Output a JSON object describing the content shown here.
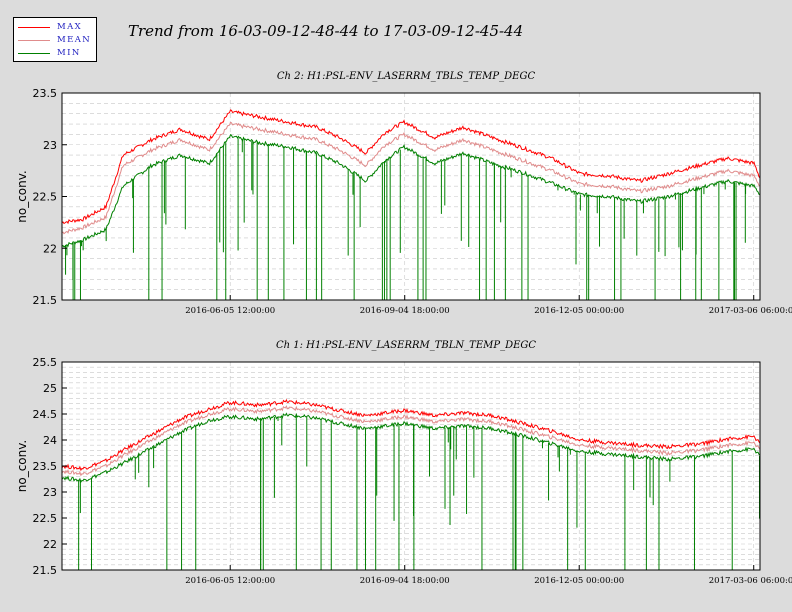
{
  "header": {
    "title": "Trend from 16-03-09-12-48-44 to 17-03-09-12-45-44"
  },
  "legend": [
    {
      "label": "MAX",
      "color": "#ff0000"
    },
    {
      "label": "MEAN",
      "color": "#e08c8c"
    },
    {
      "label": "MIN",
      "color": "#008000"
    }
  ],
  "chart_data": [
    {
      "type": "line",
      "title": "Ch 2: H1:PSL-ENV_LASERRM_TBLS_TEMP_DEGC",
      "ylabel": "no_conv.",
      "ylim": [
        21.5,
        23.5
      ],
      "yticks": [
        21.5,
        22,
        22.5,
        23,
        23.5
      ],
      "ytick_labels": [
        "21.5",
        "22",
        "22.5",
        "23",
        "23.5"
      ],
      "x_range": [
        "2016-03-09 12:48:44",
        "2017-03-09 12:45:44"
      ],
      "xticks": [
        "2016-06-05 12:00:00",
        "2016-09-04 18:00:00",
        "2016-12-05 00:00:00",
        "2017-03-06 06:00:00"
      ],
      "grid": true,
      "series": [
        {
          "name": "MAX",
          "color": "#ff0000"
        },
        {
          "name": "MEAN",
          "color": "#e08c8c"
        },
        {
          "name": "MIN",
          "color": "#008000"
        }
      ],
      "x": [
        "2016-03-09",
        "2016-03-20",
        "2016-04-01",
        "2016-04-10",
        "2016-04-25",
        "2016-05-10",
        "2016-05-25",
        "2016-06-05",
        "2016-06-20",
        "2016-07-05",
        "2016-07-20",
        "2016-08-01",
        "2016-08-15",
        "2016-08-25",
        "2016-09-04",
        "2016-09-20",
        "2016-10-05",
        "2016-10-20",
        "2016-11-05",
        "2016-11-20",
        "2016-12-05",
        "2016-12-20",
        "2017-01-05",
        "2017-01-20",
        "2017-02-05",
        "2017-02-20",
        "2017-03-06",
        "2017-03-09"
      ],
      "mean": [
        22.15,
        22.2,
        22.3,
        22.8,
        22.95,
        23.05,
        22.95,
        23.2,
        23.15,
        23.1,
        23.05,
        22.95,
        22.8,
        23.0,
        23.1,
        22.95,
        23.05,
        22.95,
        22.85,
        22.75,
        22.62,
        22.6,
        22.55,
        22.6,
        22.68,
        22.75,
        22.7,
        22.6
      ],
      "max": [
        22.25,
        22.28,
        22.4,
        22.9,
        23.05,
        23.15,
        23.05,
        23.32,
        23.27,
        23.22,
        23.17,
        23.07,
        22.92,
        23.12,
        23.22,
        23.07,
        23.17,
        23.07,
        22.97,
        22.87,
        22.72,
        22.7,
        22.65,
        22.72,
        22.8,
        22.87,
        22.82,
        22.68
      ],
      "min": [
        22.02,
        22.08,
        22.18,
        22.6,
        22.8,
        22.9,
        22.82,
        23.08,
        23.02,
        22.98,
        22.92,
        22.82,
        22.65,
        22.85,
        22.98,
        22.82,
        22.92,
        22.82,
        22.73,
        22.63,
        22.52,
        22.5,
        22.45,
        22.5,
        22.58,
        22.65,
        22.6,
        22.52
      ]
    },
    {
      "type": "line",
      "title": "Ch 1: H1:PSL-ENV_LASERRM_TBLN_TEMP_DEGC",
      "ylabel": "no_conv.",
      "ylim": [
        21.5,
        25.5
      ],
      "yticks": [
        21.5,
        22,
        22.5,
        23,
        23.5,
        24,
        24.5,
        25,
        25.5
      ],
      "ytick_labels": [
        "21.5",
        "22",
        "22.5",
        "23",
        "23.5",
        "24",
        "24.5",
        "25",
        "25.5"
      ],
      "x_range": [
        "2016-03-09 12:48:44",
        "2017-03-09 12:45:44"
      ],
      "xticks": [
        "2016-06-05 12:00:00",
        "2016-09-04 18:00:00",
        "2016-12-05 00:00:00",
        "2017-03-06 06:00:00"
      ],
      "grid": true,
      "series": [
        {
          "name": "MAX",
          "color": "#ff0000"
        },
        {
          "name": "MEAN",
          "color": "#e08c8c"
        },
        {
          "name": "MIN",
          "color": "#008000"
        }
      ],
      "x": [
        "2016-03-09",
        "2016-03-20",
        "2016-04-01",
        "2016-04-10",
        "2016-04-25",
        "2016-05-10",
        "2016-05-25",
        "2016-06-05",
        "2016-06-20",
        "2016-07-05",
        "2016-07-20",
        "2016-08-01",
        "2016-08-15",
        "2016-08-25",
        "2016-09-04",
        "2016-09-20",
        "2016-10-05",
        "2016-10-20",
        "2016-11-05",
        "2016-11-20",
        "2016-12-05",
        "2016-12-20",
        "2017-01-05",
        "2017-01-20",
        "2017-02-05",
        "2017-02-20",
        "2017-03-06",
        "2017-03-09"
      ],
      "mean": [
        23.4,
        23.35,
        23.5,
        23.7,
        24.0,
        24.3,
        24.5,
        24.6,
        24.55,
        24.62,
        24.55,
        24.45,
        24.35,
        24.4,
        24.45,
        24.35,
        24.4,
        24.35,
        24.2,
        24.05,
        23.9,
        23.85,
        23.8,
        23.75,
        23.8,
        23.9,
        23.95,
        23.8
      ],
      "max": [
        23.5,
        23.45,
        23.6,
        23.8,
        24.1,
        24.4,
        24.6,
        24.72,
        24.67,
        24.74,
        24.67,
        24.57,
        24.47,
        24.52,
        24.57,
        24.47,
        24.52,
        24.47,
        24.32,
        24.17,
        24.0,
        23.95,
        23.9,
        23.87,
        23.92,
        24.02,
        24.07,
        23.92
      ],
      "min": [
        23.28,
        23.22,
        23.38,
        23.55,
        23.85,
        24.15,
        24.38,
        24.45,
        24.4,
        24.48,
        24.42,
        24.32,
        24.22,
        24.27,
        24.32,
        24.22,
        24.27,
        24.22,
        24.08,
        23.93,
        23.78,
        23.73,
        23.68,
        23.63,
        23.68,
        23.78,
        23.83,
        23.68
      ]
    }
  ]
}
